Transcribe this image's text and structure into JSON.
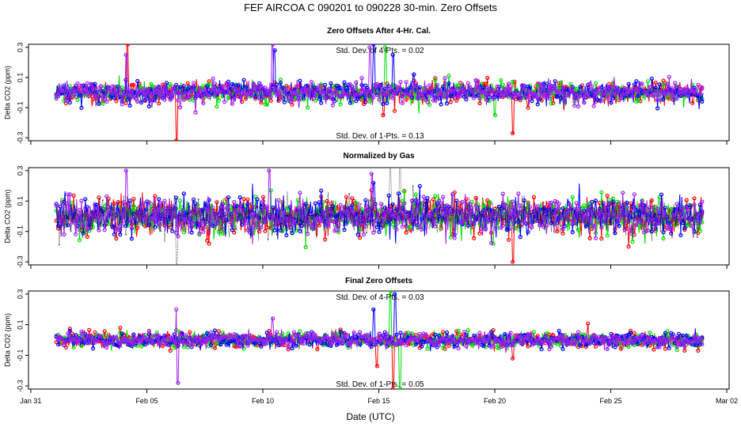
{
  "chart_data": {
    "type": "scatter",
    "title": "FEF   AIRCOA C   090201 to 090228   30-min. Zero Offsets",
    "xlabel": "Date (UTC)",
    "x_ticks": [
      "Jan 31",
      "Feb 05",
      "Feb 10",
      "Feb 15",
      "Feb 20",
      "Feb 25",
      "Mar 02"
    ],
    "x_tick_days": [
      0,
      5,
      10,
      15,
      20,
      25,
      30
    ],
    "xlim_days": [
      -0.1,
      30.1
    ],
    "data_range_days": [
      1.1,
      29.0
    ],
    "series_colors": {
      "red": "#ff0000",
      "green": "#00dd00",
      "blue": "#0000ff",
      "purple": "#a020f0",
      "black": "#000000"
    },
    "panels": [
      {
        "title": "Zero Offsets After 4-Hr. Cal.",
        "ylabel": "Delta CO2 (ppm)",
        "y_ticks": [
          "0.3",
          "0.1",
          "-0.1",
          "-0.3"
        ],
        "y_tick_values": [
          0.3,
          0.1,
          -0.1,
          -0.3
        ],
        "ylim": [
          -0.32,
          0.32
        ],
        "annotations": [
          "Std. Dev. of 4-Pts. = 0.02",
          "Std. Dev. of 1-Pts. = 0.13"
        ],
        "noise_sd": 0.035,
        "series": [
          "red",
          "green",
          "blue",
          "purple"
        ],
        "spikes": [
          {
            "day": 4.15,
            "value": 0.32,
            "color": "red"
          },
          {
            "day": 4.1,
            "value": 0.25,
            "color": "purple"
          },
          {
            "day": 6.3,
            "value": -0.32,
            "color": "red"
          },
          {
            "day": 10.4,
            "value": 0.32,
            "color": "purple"
          },
          {
            "day": 10.5,
            "value": 0.28,
            "color": "blue"
          },
          {
            "day": 14.6,
            "value": 0.3,
            "color": "purple"
          },
          {
            "day": 14.8,
            "value": 0.32,
            "color": "blue"
          },
          {
            "day": 15.3,
            "value": 0.3,
            "color": "green"
          },
          {
            "day": 15.6,
            "value": 0.25,
            "color": "blue"
          },
          {
            "day": 15.2,
            "value": -0.15,
            "color": "red"
          },
          {
            "day": 16.5,
            "value": 0.12,
            "color": "blue"
          },
          {
            "day": 20.8,
            "value": -0.27,
            "color": "red"
          },
          {
            "day": 20.0,
            "value": -0.15,
            "color": "green"
          }
        ]
      },
      {
        "title": "Normalized by Gas",
        "ylabel": "Delta CO2 (ppm)",
        "y_ticks": [
          "0.3",
          "0.1",
          "-0.1",
          "-0.3"
        ],
        "y_tick_values": [
          0.3,
          0.1,
          -0.1,
          -0.3
        ],
        "ylim": [
          -0.32,
          0.32
        ],
        "annotations": [],
        "noise_sd": 0.06,
        "series": [
          "red",
          "green",
          "blue",
          "purple",
          "black"
        ],
        "spikes": [
          {
            "day": 4.1,
            "value": 0.3,
            "color": "purple"
          },
          {
            "day": 6.3,
            "value": -0.32,
            "color": "black"
          },
          {
            "day": 10.3,
            "value": 0.3,
            "color": "purple"
          },
          {
            "day": 14.7,
            "value": 0.28,
            "color": "purple"
          },
          {
            "day": 14.8,
            "value": 0.22,
            "color": "blue"
          },
          {
            "day": 15.5,
            "value": 0.32,
            "color": "black"
          },
          {
            "day": 15.9,
            "value": 0.32,
            "color": "black"
          },
          {
            "day": 20.8,
            "value": -0.3,
            "color": "red"
          },
          {
            "day": 19.9,
            "value": -0.18,
            "color": "green"
          }
        ]
      },
      {
        "title": "Final Zero Offsets",
        "ylabel": "Delta CO2 (ppm)",
        "y_ticks": [
          "0.3",
          "0.1",
          "-0.1",
          "-0.3"
        ],
        "y_tick_values": [
          0.3,
          0.1,
          -0.1,
          -0.3
        ],
        "ylim": [
          -0.32,
          0.32
        ],
        "annotations": [
          "Std. Dev. of 4-Pts. = 0.03",
          "Std. Dev. of 1-Pts. = 0.05"
        ],
        "noise_sd": 0.025,
        "series": [
          "red",
          "green",
          "blue",
          "purple"
        ],
        "spikes": [
          {
            "day": 6.3,
            "value": 0.2,
            "color": "purple"
          },
          {
            "day": 6.35,
            "value": -0.28,
            "color": "purple"
          },
          {
            "day": 10.4,
            "value": 0.14,
            "color": "purple"
          },
          {
            "day": 14.8,
            "value": 0.2,
            "color": "blue"
          },
          {
            "day": 14.9,
            "value": -0.17,
            "color": "red"
          },
          {
            "day": 15.5,
            "value": 0.32,
            "color": "green"
          },
          {
            "day": 15.6,
            "value": -0.32,
            "color": "red"
          },
          {
            "day": 15.9,
            "value": -0.32,
            "color": "green"
          },
          {
            "day": 15.7,
            "value": 0.3,
            "color": "blue"
          },
          {
            "day": 20.8,
            "value": -0.12,
            "color": "red"
          }
        ]
      }
    ]
  }
}
